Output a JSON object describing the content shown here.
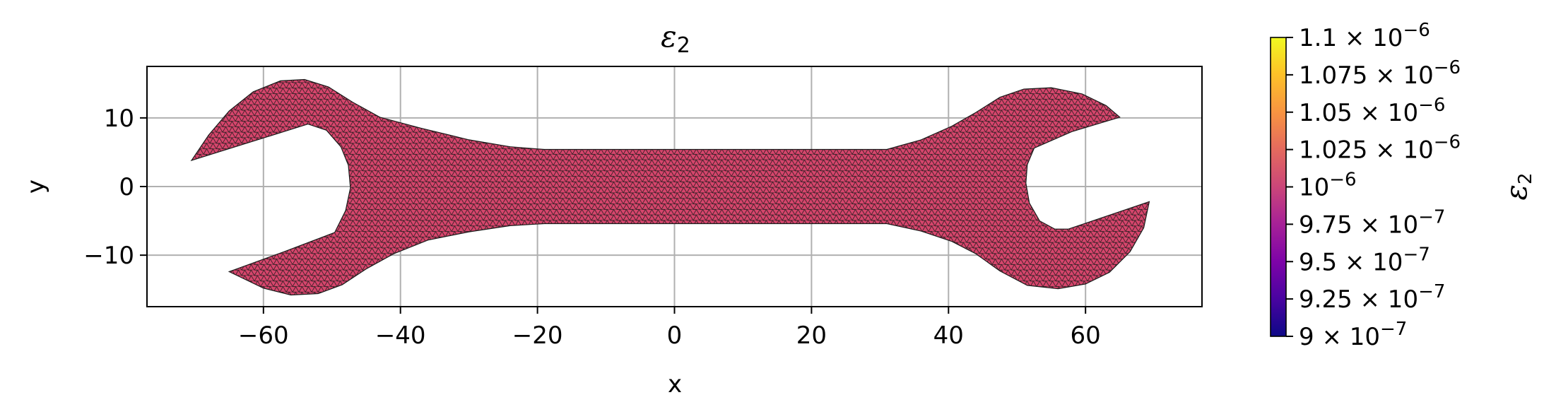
{
  "chart_data": {
    "type": "heatmap",
    "title": "ε",
    "title_sub": "2",
    "xlabel": "x",
    "ylabel": "y",
    "xlim": [
      -77,
      77
    ],
    "ylim": [
      -17.5,
      17.5
    ],
    "xticks": [
      -60,
      -40,
      -20,
      0,
      20,
      40,
      60
    ],
    "xtick_labels": [
      "−60",
      "−40",
      "−20",
      "0",
      "20",
      "40",
      "60"
    ],
    "yticks": [
      10,
      0,
      -10
    ],
    "ytick_labels": [
      "10",
      "0",
      "−10"
    ],
    "grid": true,
    "field_value": 1e-06,
    "field_color": "#d6456c",
    "mesh_edge_color": "#1a1a1a",
    "colorbar": {
      "label": "ε",
      "label_sub": "2",
      "colormap": "plasma",
      "vmin": 9e-07,
      "vmax": 1.1e-06,
      "ticks": [
        {
          "value": 1.1e-06,
          "mant": "1.1 × 10",
          "exp": "−6"
        },
        {
          "value": 1.075e-06,
          "mant": "1.075 × 10",
          "exp": "−6"
        },
        {
          "value": 1.05e-06,
          "mant": "1.05 × 10",
          "exp": "−6"
        },
        {
          "value": 1.025e-06,
          "mant": "1.025 × 10",
          "exp": "−6"
        },
        {
          "value": 1e-06,
          "mant": "10",
          "exp": "−6"
        },
        {
          "value": 9.75e-07,
          "mant": "9.75 × 10",
          "exp": "−7"
        },
        {
          "value": 9.5e-07,
          "mant": "9.5 × 10",
          "exp": "−7"
        },
        {
          "value": 9.25e-07,
          "mant": "9.25 × 10",
          "exp": "−7"
        },
        {
          "value": 9e-07,
          "mant": "9 × 10",
          "exp": "−7"
        }
      ]
    }
  }
}
